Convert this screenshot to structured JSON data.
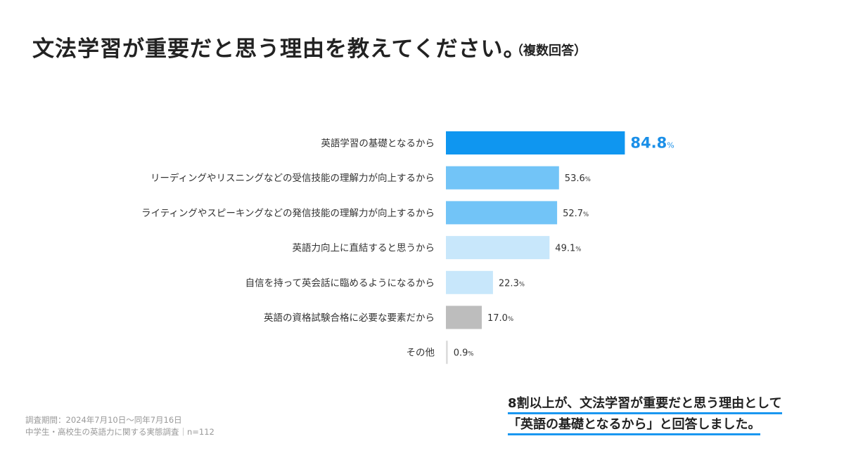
{
  "header": {
    "title": "文法学習が重要だと思う理由を教えてください。",
    "note": "（複数回答）"
  },
  "chart_data": {
    "type": "bar",
    "orientation": "horizontal",
    "unit": "%",
    "categories": [
      "英語学習の基礎となるから",
      "リーディングやリスニングなどの受信技能の理解力が向上するから",
      "ライティングやスピーキングなどの発信技能の理解力が向上するから",
      "英語力向上に直結すると思うから",
      "自信を持って英会話に臨めるようになるから",
      "英語の資格試験合格に必要な要素だから",
      "その他"
    ],
    "values": [
      84.8,
      53.6,
      52.7,
      49.1,
      22.3,
      17.0,
      0.9
    ],
    "value_labels": [
      "84.8",
      "53.6",
      "52.7",
      "49.1",
      "22.3",
      "17.0",
      "0.9"
    ],
    "colors": [
      "#0f96f0",
      "#72c4f7",
      "#72c4f7",
      "#c8e7fb",
      "#c8e7fb",
      "#bdbdbd",
      "#dddddd"
    ],
    "highlight_color": "#1a8fe8",
    "xlim": [
      0,
      100
    ],
    "grid": false
  },
  "footnote": {
    "line1": "調査期間：2024年7月10日〜同年7月16日",
    "line2": "中学生・高校生の英語力に関する実態調査｜n=112"
  },
  "summary": {
    "line1": "8割以上が、文法学習が重要だと思う理由として",
    "line2": "「英語の基礎となるから」と回答しました。"
  }
}
